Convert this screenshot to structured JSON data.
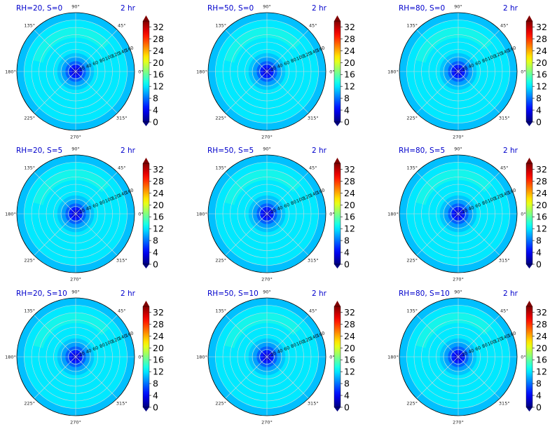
{
  "figure": {
    "colormap": "jet",
    "colorbar_ticks": [
      "0",
      "4",
      "8",
      "12",
      "16",
      "20",
      "24",
      "28",
      "32"
    ],
    "colorbar_range": [
      0,
      34
    ],
    "angle_labels": [
      "0°",
      "45°",
      "90°",
      "135°",
      "180°",
      "225°",
      "270°",
      "315°"
    ],
    "radial_labels": [
      "20",
      "40",
      "60",
      "80",
      "100",
      "120",
      "140",
      "160"
    ],
    "title_color": "#0000cc"
  },
  "chart_data": [
    {
      "type": "heatmap",
      "projection": "polar",
      "title": "RH=20, S=0",
      "time_label": "2 hr",
      "rh": 20,
      "s": 0,
      "r_max": 160,
      "center_value": 2,
      "base_value": 12,
      "streak_value": 14
    },
    {
      "type": "heatmap",
      "projection": "polar",
      "title": "RH=50, S=0",
      "time_label": "2 hr",
      "rh": 50,
      "s": 0,
      "r_max": 160,
      "center_value": 2,
      "base_value": 12,
      "streak_value": 14
    },
    {
      "type": "heatmap",
      "projection": "polar",
      "title": "RH=80, S=0",
      "time_label": "2 hr",
      "rh": 80,
      "s": 0,
      "r_max": 160,
      "center_value": 2,
      "base_value": 12,
      "streak_value": 14
    },
    {
      "type": "heatmap",
      "projection": "polar",
      "title": "RH=20, S=5",
      "time_label": "2 hr",
      "rh": 20,
      "s": 5,
      "r_max": 160,
      "center_value": 2,
      "base_value": 12,
      "streak_value": 14
    },
    {
      "type": "heatmap",
      "projection": "polar",
      "title": "RH=50, S=5",
      "time_label": "2 hr",
      "rh": 50,
      "s": 5,
      "r_max": 160,
      "center_value": 2,
      "base_value": 12,
      "streak_value": 14
    },
    {
      "type": "heatmap",
      "projection": "polar",
      "title": "RH=80, S=5",
      "time_label": "2 hr",
      "rh": 80,
      "s": 5,
      "r_max": 160,
      "center_value": 2,
      "base_value": 12,
      "streak_value": 14
    },
    {
      "type": "heatmap",
      "projection": "polar",
      "title": "RH=20, S=10",
      "time_label": "2 hr",
      "rh": 20,
      "s": 10,
      "r_max": 160,
      "center_value": 2,
      "base_value": 12,
      "streak_value": 14
    },
    {
      "type": "heatmap",
      "projection": "polar",
      "title": "RH=50, S=10",
      "time_label": "2 hr",
      "rh": 50,
      "s": 10,
      "r_max": 160,
      "center_value": 2,
      "base_value": 12,
      "streak_value": 14
    },
    {
      "type": "heatmap",
      "projection": "polar",
      "title": "RH=80, S=10",
      "time_label": "2 hr",
      "rh": 80,
      "s": 10,
      "r_max": 160,
      "center_value": 2,
      "base_value": 12,
      "streak_value": 14
    }
  ]
}
